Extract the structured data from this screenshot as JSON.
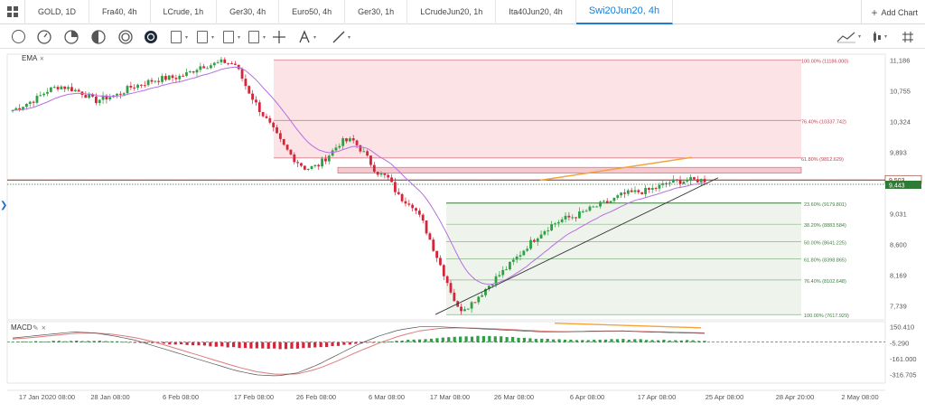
{
  "tabs": [
    {
      "label": "GOLD, 1D",
      "active": false
    },
    {
      "label": "Fra40, 4h",
      "active": false
    },
    {
      "label": "LCrude, 1h",
      "active": false
    },
    {
      "label": "Ger30, 4h",
      "active": false
    },
    {
      "label": "Euro50, 4h",
      "active": false
    },
    {
      "label": "Ger30, 1h",
      "active": false
    },
    {
      "label": "LCrudeJun20, 1h",
      "active": false
    },
    {
      "label": "Ita40Jun20, 4h",
      "active": false
    },
    {
      "label": "Swi20Jun20, 4h",
      "active": true
    }
  ],
  "add_chart_label": "Add Chart",
  "toolbar": {
    "left_icons": [
      "cursor-circle-icon",
      "clock-circle-icon",
      "ring-circle-icon",
      "half-circle-icon",
      "double-ring-icon",
      "filled-circle-icon",
      "calendar-icon",
      "calendar-icon",
      "calendar-icon",
      "calendar-icon",
      "crosshair-icon",
      "text-tool-icon",
      "line-tool-icon"
    ],
    "right_icons": [
      "indicator-lines-icon",
      "candle-type-icon",
      "hash-grid-icon"
    ]
  },
  "colors": {
    "accent": "#1b7dd6",
    "bull": "#2ea043",
    "bear": "#d6243a",
    "ema": "#b76fe0",
    "fib_upper_zone": "#fbe3e6",
    "fib_lower_zone": "#eef3ec",
    "trend_orange": "#f5a23c",
    "price_line": "#8b2d1b"
  },
  "chart_data": [
    {
      "type": "candlestick",
      "indicator_label": "EMA",
      "price_axis": [
        "11,186",
        "10,755",
        "10,324",
        "9,893",
        "9,031",
        "8,600",
        "8,169",
        "7,739"
      ],
      "price_ylim": [
        7570,
        11240
      ],
      "last_price_labels": [
        "9,503",
        "9,443"
      ],
      "last_price_values": [
        9503,
        9443
      ],
      "x_axis_labels": [
        "17 Jan 2020 08:00",
        "28 Jan 08:00",
        "6 Feb 08:00",
        "17 Feb 08:00",
        "26 Feb 08:00",
        "6 Mar 08:00",
        "17 Mar 08:00",
        "26 Mar 08:00",
        "6 Apr 08:00",
        "17 Apr 08:00",
        "25 Apr 08:00",
        "28 Apr 20:00",
        "2 May 08:00"
      ],
      "fib_upper": [
        {
          "label": "100.00% (11186.000)",
          "value": 11186
        },
        {
          "label": "76.40% (10337.742)",
          "value": 10337.742
        },
        {
          "label": "61.80% (9812.629)",
          "value": 9812.629
        }
      ],
      "fib_lower": [
        {
          "label": "23.60% (9179.801)",
          "value": 9179.801
        },
        {
          "label": "38.20% (8883.584)",
          "value": 8883.584
        },
        {
          "label": "50.00% (8641.225)",
          "value": 8641.225
        },
        {
          "label": "61.80% (8398.865)",
          "value": 8398.865
        },
        {
          "label": "76.40% (8102.648)",
          "value": 8102.648
        },
        {
          "label": "100.00% (7617.929)",
          "value": 7617.929
        }
      ],
      "resistance_band": [
        9600,
        9680
      ],
      "close_path": [
        10480,
        10560,
        10640,
        10760,
        10820,
        10780,
        10720,
        10610,
        10660,
        10700,
        10800,
        10850,
        10900,
        10930,
        10940,
        11000,
        11100,
        11120,
        11160,
        11120,
        10780,
        10500,
        10260,
        10000,
        9800,
        9660,
        9700,
        9860,
        10040,
        10060,
        9870,
        9620,
        9530,
        9250,
        9180,
        8900,
        8500,
        8100,
        7680,
        7760,
        7920,
        8100,
        8250,
        8420,
        8600,
        8760,
        8880,
        8960,
        9000,
        9080,
        9150,
        9210,
        9300,
        9330,
        9350,
        9400,
        9470,
        9490,
        9500,
        9503
      ]
    },
    {
      "type": "macd",
      "indicator_label": "MACD",
      "axis_labels": [
        "150.410",
        "-5.290",
        "-161.000",
        "-316.705"
      ],
      "ylim": [
        -400,
        200
      ],
      "histogram_path": [
        10,
        20,
        30,
        40,
        35,
        20,
        0,
        -30,
        -60,
        -90,
        -120,
        -150,
        -175,
        -190,
        -180,
        -150,
        -100,
        -50,
        0,
        40,
        80,
        120,
        150,
        170,
        160,
        120,
        90,
        70,
        60,
        70,
        80,
        70,
        60,
        50,
        40
      ],
      "macd_path": [
        40,
        60,
        80,
        100,
        90,
        60,
        20,
        -40,
        -100,
        -160,
        -220,
        -280,
        -320,
        -330,
        -300,
        -220,
        -120,
        -20,
        60,
        120,
        150,
        150,
        140,
        130,
        120,
        110,
        100,
        100,
        105,
        110,
        110,
        100,
        95,
        90,
        85
      ],
      "signal_path": [
        30,
        45,
        65,
        85,
        90,
        75,
        45,
        0,
        -60,
        -120,
        -180,
        -240,
        -290,
        -315,
        -310,
        -260,
        -180,
        -90,
        -10,
        60,
        110,
        135,
        140,
        135,
        128,
        118,
        108,
        103,
        103,
        106,
        108,
        104,
        100,
        95,
        90
      ]
    }
  ]
}
